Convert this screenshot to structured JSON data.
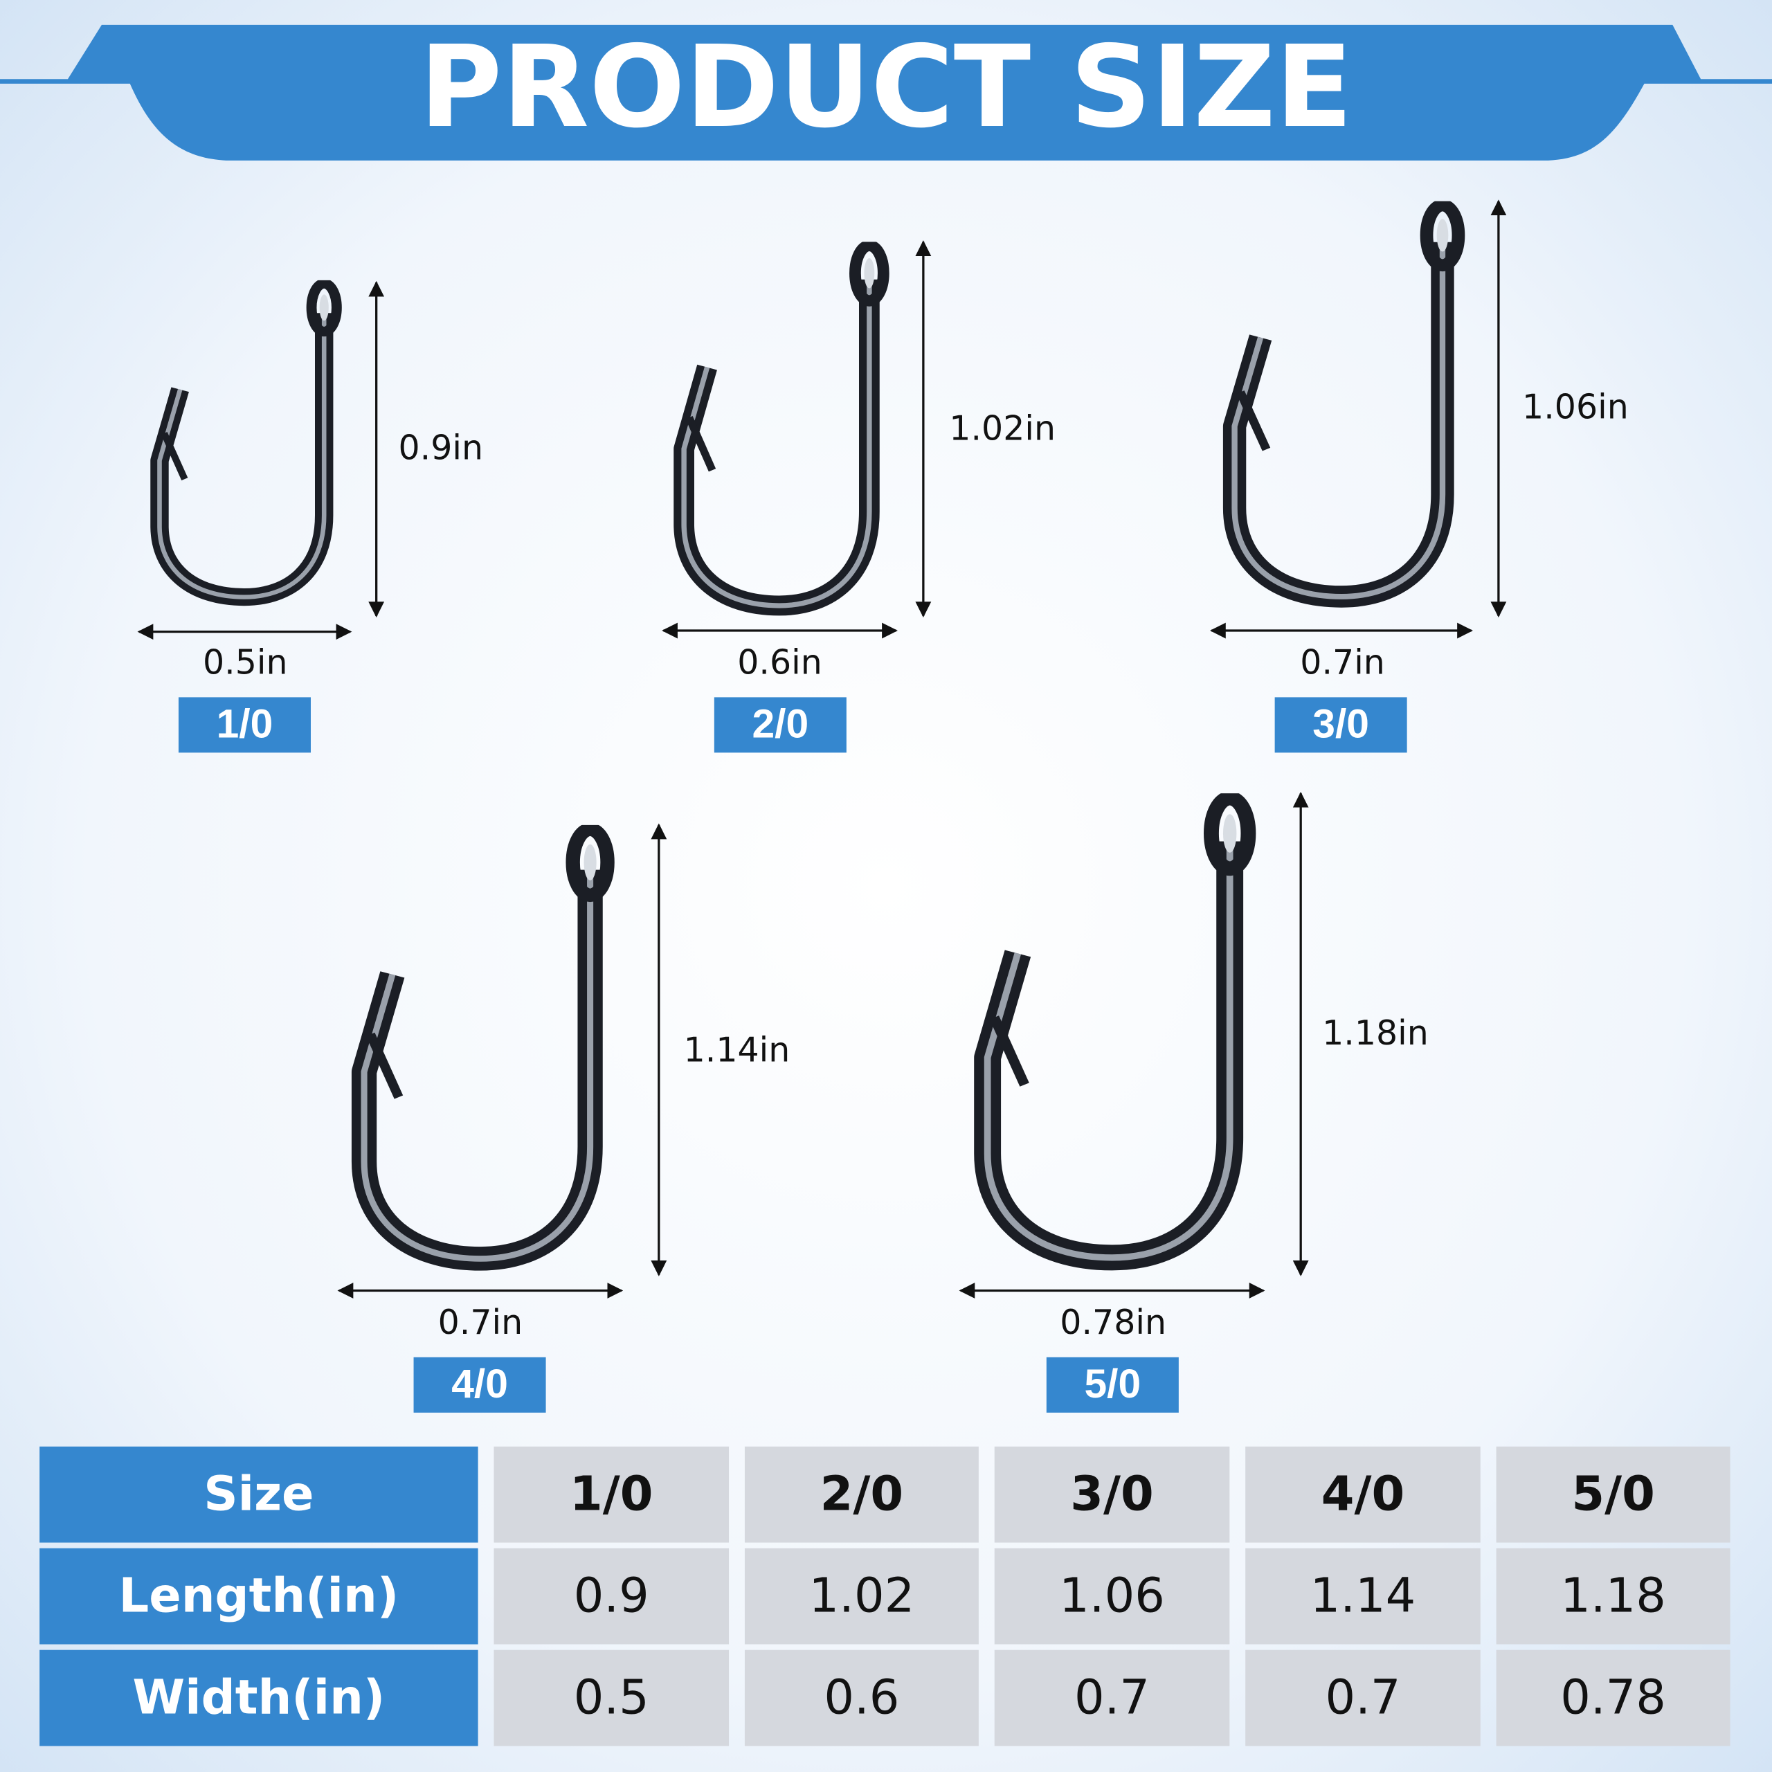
{
  "header": {
    "title": "PRODUCT SIZE"
  },
  "hooks": [
    {
      "size": "1/0",
      "length": "0.9in",
      "width": "0.5in"
    },
    {
      "size": "2/0",
      "length": "1.02in",
      "width": "0.6in"
    },
    {
      "size": "3/0",
      "length": "1.06in",
      "width": "0.7in"
    },
    {
      "size": "4/0",
      "length": "1.14in",
      "width": "0.7in"
    },
    {
      "size": "5/0",
      "length": "1.18in",
      "width": "0.78in"
    }
  ],
  "table": {
    "rows": [
      [
        "Size",
        "1/0",
        "2/0",
        "3/0",
        "4/0",
        "5/0"
      ],
      [
        "Length(in)",
        "0.9",
        "1.02",
        "1.06",
        "1.14",
        "1.18"
      ],
      [
        "Width(in)",
        "0.5",
        "0.6",
        "0.7",
        "0.7",
        "0.78"
      ]
    ]
  }
}
